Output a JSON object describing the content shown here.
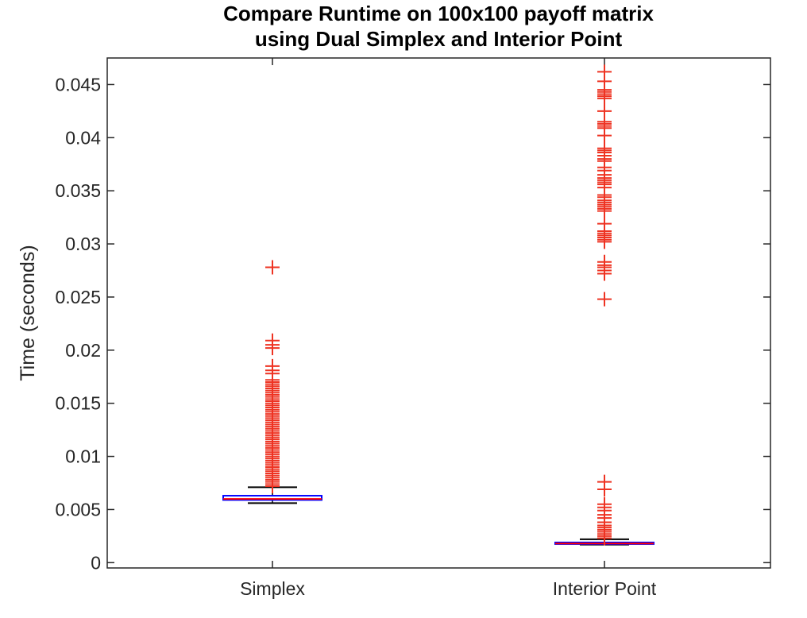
{
  "chart_data": {
    "type": "boxplot",
    "title_lines": [
      "Compare Runtime on 100x100 payoff matrix",
      "using Dual Simplex and Interior Point"
    ],
    "xlabel": "",
    "ylabel": "Time (seconds)",
    "ylim": [
      -0.0005,
      0.0475
    ],
    "yticks": [
      0,
      0.005,
      0.01,
      0.015,
      0.02,
      0.025,
      0.03,
      0.035,
      0.04,
      0.045
    ],
    "ytick_labels": [
      "0",
      "0.005",
      "0.01",
      "0.015",
      "0.02",
      "0.025",
      "0.03",
      "0.035",
      "0.04",
      "0.045"
    ],
    "categories": [
      "Simplex",
      "Interior Point"
    ],
    "grid": false,
    "colors": {
      "box": "#0000ff",
      "median": "#ff0000",
      "whisker": "#000000",
      "outlier": "#ee3322",
      "axis": "#262626"
    },
    "series": [
      {
        "category": "Simplex",
        "whisker_low": 0.0056,
        "q1": 0.0059,
        "median": 0.006,
        "q3": 0.0063,
        "whisker_high": 0.0071,
        "outliers": [
          0.0072,
          0.0074,
          0.0076,
          0.0078,
          0.008,
          0.0082,
          0.0084,
          0.0086,
          0.0088,
          0.009,
          0.0092,
          0.0094,
          0.0096,
          0.0098,
          0.01,
          0.0102,
          0.0104,
          0.0106,
          0.0108,
          0.011,
          0.0112,
          0.0114,
          0.0116,
          0.0118,
          0.012,
          0.0122,
          0.0124,
          0.0126,
          0.0128,
          0.013,
          0.0132,
          0.0134,
          0.0136,
          0.0138,
          0.014,
          0.0142,
          0.0144,
          0.0146,
          0.0148,
          0.015,
          0.0152,
          0.0154,
          0.0156,
          0.0158,
          0.016,
          0.0162,
          0.0164,
          0.0166,
          0.0168,
          0.017,
          0.0172,
          0.0178,
          0.0181,
          0.0185,
          0.0202,
          0.0205,
          0.0209,
          0.0278
        ]
      },
      {
        "category": "Interior Point",
        "whisker_low": 0.0017,
        "q1": 0.0018,
        "median": 0.0018,
        "q3": 0.0019,
        "whisker_high": 0.0022,
        "outliers": [
          0.0023,
          0.0025,
          0.0027,
          0.0029,
          0.0031,
          0.0033,
          0.0035,
          0.0038,
          0.0042,
          0.0045,
          0.0049,
          0.0052,
          0.0055,
          0.0069,
          0.0076,
          0.0248,
          0.0272,
          0.0275,
          0.0278,
          0.028,
          0.0283,
          0.0302,
          0.0304,
          0.0306,
          0.0308,
          0.031,
          0.0312,
          0.0319,
          0.0331,
          0.0333,
          0.0335,
          0.0337,
          0.0339,
          0.0341,
          0.0344,
          0.0346,
          0.0353,
          0.0356,
          0.0358,
          0.036,
          0.0362,
          0.0365,
          0.0369,
          0.0372,
          0.0378,
          0.038,
          0.0383,
          0.0386,
          0.0388,
          0.039,
          0.0402,
          0.0409,
          0.0411,
          0.0413,
          0.0415,
          0.0425,
          0.0437,
          0.0439,
          0.0441,
          0.0443,
          0.0445,
          0.0453,
          0.0462
        ]
      }
    ]
  }
}
